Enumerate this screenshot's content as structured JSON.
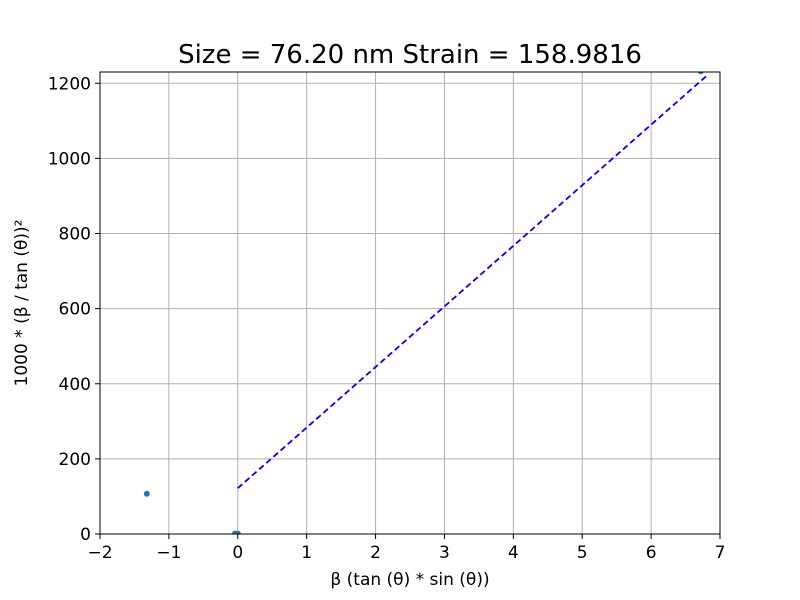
{
  "chart_data": {
    "type": "scatter",
    "title": "Size = 76.20 nm  Strain = 158.9816",
    "xlabel": "β (tan (θ) * sin (θ))",
    "ylabel": "1000 * (β / tan (θ))²",
    "xlim": [
      -2,
      7
    ],
    "ylim": [
      0,
      1230
    ],
    "xticks": [
      -2,
      -1,
      0,
      1,
      2,
      3,
      4,
      5,
      6,
      7
    ],
    "xtick_labels": [
      "−2",
      "−1",
      "0",
      "1",
      "2",
      "3",
      "4",
      "5",
      "6",
      "7"
    ],
    "yticks": [
      0,
      200,
      400,
      600,
      800,
      1000,
      1200
    ],
    "ytick_labels": [
      "0",
      "200",
      "400",
      "600",
      "800",
      "1000",
      "1200"
    ],
    "grid": true,
    "points": [
      {
        "x": -1.32,
        "y": 107
      },
      {
        "x": -0.04,
        "y": 1
      },
      {
        "x": 0.0,
        "y": 1
      },
      {
        "x": 6.72,
        "y": 1232
      }
    ],
    "fit_line": {
      "x": [
        0.0,
        6.82
      ],
      "y": [
        122,
        1222
      ],
      "style": "dashed"
    },
    "colors": {
      "points": "#1f77b4",
      "fit_line": "#0000ff",
      "grid": "#b0b0b0"
    }
  }
}
